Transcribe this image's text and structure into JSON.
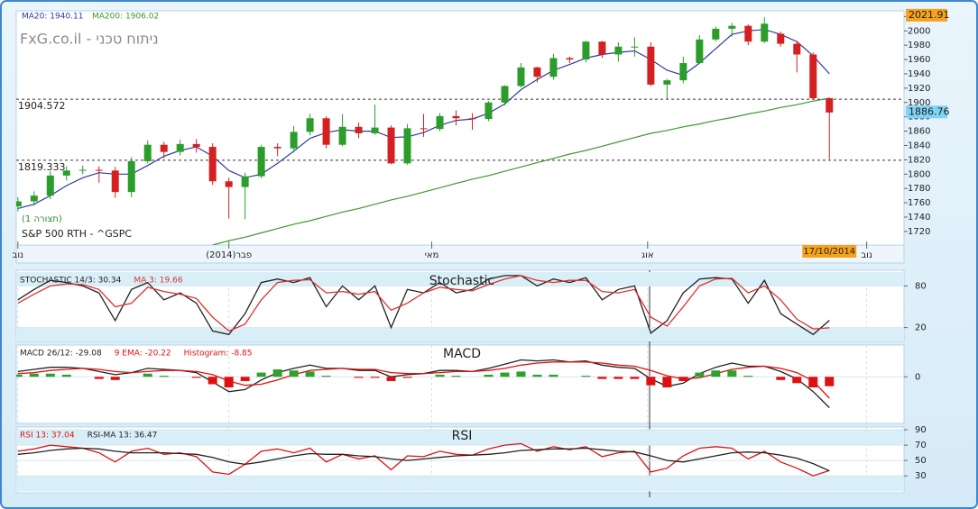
{
  "chart_data": [
    {
      "type": "candlestick",
      "title": "S&P 500 RTH - ^GSPC",
      "watermark": "FxG.co.il - ניתוח טכני",
      "pattern_label": "(1 תצורה)",
      "xlim": [
        -0.1,
        54.6
      ],
      "xticks": [
        {
          "value": 0,
          "label": "נוב"
        },
        {
          "value": 13,
          "label": "(2014)פבר"
        },
        {
          "value": 25.5,
          "label": "מאי"
        },
        {
          "value": 38.8,
          "label": "אוג"
        },
        {
          "value": 52.3,
          "label": "נוב"
        }
      ],
      "ylim": [
        1701,
        2028
      ],
      "yticks": [
        1720,
        1740,
        1760,
        1780,
        1800,
        1820,
        1840,
        1860,
        1880,
        1900,
        1920,
        1940,
        1960,
        1980,
        2000,
        2020
      ],
      "hlines": [
        1904.572,
        1819.333
      ],
      "high_label": 2021.91,
      "last_price": 1886.76,
      "date_label": "17/10/2014",
      "up_color": "#2a9d2a",
      "down_color": "#d42020",
      "ohlc": {
        "open": [
          1755,
          1762,
          1770,
          1798,
          1805,
          1806,
          1805,
          1775,
          1818,
          1841,
          1831,
          1842,
          1838,
          1790,
          1782,
          1797,
          1838,
          1836,
          1859,
          1878,
          1841,
          1866,
          1857,
          1865,
          1815,
          1864,
          1863,
          1881,
          1878,
          1877,
          1900,
          1923,
          1949,
          1936,
          1962,
          1960,
          1985,
          1967,
          1978,
          1978,
          1925,
          1931,
          1955,
          1988,
          2003,
          2007,
          1985,
          1996,
          1982,
          1967,
          1906
        ],
        "high": [
          1768,
          1776,
          1804,
          1811,
          1812,
          1811,
          1810,
          1824,
          1847,
          1845,
          1848,
          1849,
          1843,
          1795,
          1802,
          1841,
          1843,
          1867,
          1884,
          1881,
          1884,
          1872,
          1897,
          1868,
          1870,
          1884,
          1885,
          1889,
          1885,
          1902,
          1924,
          1955,
          1950,
          1968,
          1964,
          1986,
          1986,
          1984,
          1991,
          1984,
          1933,
          1964,
          1994,
          2006,
          2011,
          2009,
          2019,
          1999,
          1986,
          1970,
          1907
        ],
        "low": [
          1748,
          1756,
          1765,
          1791,
          1800,
          1788,
          1767,
          1768,
          1815,
          1822,
          1826,
          1830,
          1785,
          1738,
          1737,
          1794,
          1825,
          1830,
          1854,
          1836,
          1839,
          1850,
          1855,
          1814,
          1813,
          1852,
          1860,
          1868,
          1862,
          1874,
          1896,
          1921,
          1928,
          1932,
          1955,
          1956,
          1962,
          1957,
          1964,
          1923,
          1905,
          1927,
          1955,
          1985,
          1992,
          1980,
          1983,
          1978,
          1942,
          1905,
          1821
        ],
        "close": [
          1762,
          1770,
          1798,
          1805,
          1806,
          1805,
          1775,
          1818,
          1841,
          1831,
          1842,
          1838,
          1790,
          1782,
          1797,
          1838,
          1836,
          1859,
          1878,
          1841,
          1866,
          1857,
          1865,
          1815,
          1864,
          1863,
          1881,
          1878,
          1877,
          1900,
          1923,
          1949,
          1936,
          1962,
          1960,
          1985,
          1967,
          1978,
          1978,
          1925,
          1931,
          1955,
          1988,
          2003,
          2007,
          1985,
          2010,
          1982,
          1967,
          1906,
          1886
        ]
      },
      "series": [
        {
          "name": "MA20: 1940.11",
          "color": "#2f3a9e",
          "values": [
            1752,
            1758,
            1770,
            1784,
            1795,
            1802,
            1800,
            1800,
            1812,
            1825,
            1833,
            1838,
            1825,
            1805,
            1795,
            1800,
            1815,
            1832,
            1850,
            1858,
            1862,
            1860,
            1860,
            1851,
            1852,
            1858,
            1868,
            1875,
            1877,
            1885,
            1898,
            1918,
            1932,
            1945,
            1953,
            1962,
            1967,
            1970,
            1972,
            1960,
            1945,
            1938,
            1955,
            1975,
            1995,
            2000,
            2002,
            1995,
            1985,
            1965,
            1940.11
          ]
        },
        {
          "name": "MA200: 1906.02",
          "color": "#3c9a2c",
          "values": [
            null,
            null,
            null,
            null,
            null,
            null,
            null,
            null,
            null,
            null,
            null,
            null,
            1701,
            1707,
            1712,
            1718,
            1724,
            1730,
            1735,
            1741,
            1747,
            1752,
            1758,
            1764,
            1769,
            1775,
            1781,
            1787,
            1793,
            1798,
            1804,
            1810,
            1816,
            1822,
            1828,
            1833,
            1839,
            1845,
            1851,
            1857,
            1861,
            1866,
            1870,
            1875,
            1879,
            1884,
            1888,
            1893,
            1897,
            1902,
            1906.02
          ]
        }
      ]
    },
    {
      "type": "line",
      "title": "Stochastic",
      "ylim": [
        0,
        100
      ],
      "yticks": [
        20,
        80
      ],
      "bands": [
        [
          80,
          100
        ],
        [
          0,
          20
        ]
      ],
      "series": [
        {
          "name": "STOCHASTIC 14/3: 30.34",
          "color": "#222222",
          "values": [
            60,
            75,
            88,
            85,
            80,
            70,
            30,
            75,
            85,
            60,
            70,
            55,
            15,
            10,
            40,
            85,
            90,
            85,
            92,
            50,
            80,
            60,
            80,
            20,
            75,
            70,
            85,
            70,
            75,
            90,
            95,
            95,
            80,
            90,
            85,
            92,
            60,
            75,
            80,
            12,
            30,
            70,
            90,
            92,
            90,
            55,
            88,
            40,
            25,
            10,
            30.34
          ]
        },
        {
          "name": "MA 3: 19.66",
          "color": "#e03030",
          "values": [
            55,
            68,
            80,
            83,
            82,
            75,
            50,
            55,
            78,
            72,
            68,
            62,
            35,
            15,
            25,
            60,
            85,
            88,
            89,
            70,
            72,
            68,
            72,
            45,
            55,
            70,
            78,
            75,
            73,
            82,
            90,
            95,
            88,
            85,
            88,
            88,
            72,
            70,
            75,
            35,
            22,
            50,
            80,
            90,
            91,
            70,
            80,
            60,
            32,
            18,
            19.66
          ]
        }
      ]
    },
    {
      "type": "line",
      "title": "MACD",
      "ylim": [
        -44,
        30
      ],
      "yticks": [
        0
      ],
      "series": [
        {
          "name": "MACD 26/12: -29.08",
          "color": "#222222",
          "values": [
            5,
            7,
            9,
            9,
            8,
            5,
            2,
            4,
            8,
            7,
            6,
            4,
            -5,
            -14,
            -12,
            -3,
            4,
            8,
            11,
            8,
            8,
            6,
            6,
            0,
            2,
            3,
            6,
            6,
            5,
            8,
            12,
            16,
            15,
            16,
            14,
            15,
            11,
            9,
            8,
            -2,
            -9,
            -6,
            3,
            9,
            13,
            10,
            10,
            5,
            -2,
            -14,
            -29.08
          ]
        },
        {
          "name": "9 EMA: -20.22",
          "color": "#e01010",
          "values": [
            3,
            4,
            6,
            7,
            8,
            7,
            5,
            4,
            5,
            6,
            6,
            5,
            2,
            -4,
            -8,
            -7,
            -3,
            2,
            6,
            7,
            8,
            7,
            7,
            4,
            3,
            3,
            4,
            5,
            5,
            6,
            8,
            11,
            13,
            14,
            14,
            14,
            13,
            11,
            10,
            6,
            1,
            -2,
            -1,
            3,
            7,
            9,
            10,
            8,
            4,
            -4,
            -20.22
          ]
        },
        {
          "name": "Histogram: -8.85",
          "type": "bar",
          "color": "#2ea02e",
          "negative_color": "#e01010",
          "values": [
            2,
            3,
            3,
            2,
            0,
            -2,
            -3,
            0,
            3,
            1,
            0,
            -1,
            -7,
            -10,
            -4,
            4,
            7,
            6,
            5,
            1,
            0,
            -1,
            -1,
            -4,
            -1,
            0,
            2,
            1,
            0,
            2,
            4,
            5,
            2,
            2,
            0,
            1,
            -2,
            -2,
            -2,
            -8,
            -10,
            -4,
            4,
            6,
            6,
            1,
            0,
            -3,
            -6,
            -10,
            -8.85
          ]
        }
      ]
    },
    {
      "type": "line",
      "title": "RSI",
      "ylim": [
        8,
        93.5
      ],
      "yticks": [
        30,
        50,
        70,
        90
      ],
      "bands": [
        [
          70,
          90
        ],
        [
          10,
          30
        ]
      ],
      "series": [
        {
          "name": "RSI 13: 37.04",
          "color": "#e01010",
          "values": [
            62,
            65,
            70,
            68,
            66,
            60,
            48,
            62,
            66,
            58,
            60,
            55,
            35,
            32,
            45,
            62,
            65,
            60,
            66,
            48,
            58,
            52,
            56,
            38,
            56,
            55,
            62,
            58,
            57,
            65,
            70,
            72,
            62,
            68,
            64,
            68,
            55,
            60,
            62,
            35,
            40,
            56,
            66,
            68,
            66,
            52,
            62,
            48,
            40,
            30,
            37.04
          ]
        },
        {
          "name": "RSI-MA 13: 36.47",
          "color": "#222222",
          "values": [
            58,
            60,
            63,
            65,
            66,
            65,
            62,
            60,
            60,
            60,
            59,
            58,
            54,
            48,
            45,
            48,
            52,
            56,
            59,
            58,
            58,
            56,
            55,
            52,
            50,
            52,
            54,
            56,
            57,
            58,
            60,
            63,
            64,
            65,
            65,
            66,
            64,
            62,
            61,
            56,
            50,
            48,
            52,
            56,
            60,
            61,
            60,
            57,
            53,
            46,
            36.47
          ]
        }
      ]
    }
  ]
}
